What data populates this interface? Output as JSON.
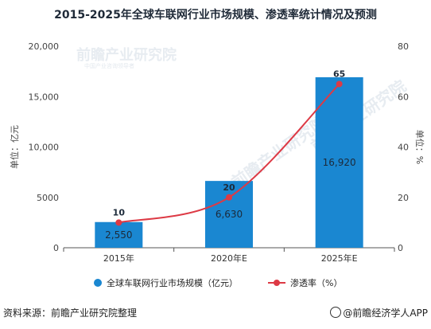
{
  "title": "2015-2025年全球车联网行业市场规模、渗透率统计情况及预测",
  "watermark": "前瞻产业研究院",
  "watermark_sub": "中国产业咨询领导者",
  "chart_data": {
    "type": "bar",
    "categories": [
      "2015年",
      "2020年E",
      "2025年E"
    ],
    "series": [
      {
        "name": "全球车联网行业市场规模（亿元）",
        "type": "bar",
        "axis": "left",
        "values": [
          2550,
          6630,
          16920
        ],
        "labels": [
          "2,550",
          "6,630",
          "16,920"
        ],
        "color": "#1a87d1"
      },
      {
        "name": "渗透率（%）",
        "type": "line",
        "axis": "right",
        "values": [
          10,
          20,
          65
        ],
        "labels": [
          "10",
          "20",
          "65"
        ],
        "color": "#dd3a45"
      }
    ],
    "ylabel": "单位：亿元",
    "y2label": "单位：%",
    "ylim": [
      0,
      20000
    ],
    "y2lim": [
      0,
      80
    ],
    "yticks": [
      0,
      5000,
      10000,
      15000,
      20000
    ],
    "ytick_labels": [
      "0",
      "5000",
      "10,000",
      "15,000",
      "20,000"
    ],
    "y2ticks": [
      0,
      20,
      40,
      60,
      80
    ],
    "y2tick_labels": [
      "0",
      "20",
      "40",
      "60",
      "80"
    ],
    "grid": false,
    "legend": "bottom"
  },
  "footer": {
    "source": "资料来源：前瞻产业研究院整理",
    "brand": "@前瞻经济学人APP"
  }
}
